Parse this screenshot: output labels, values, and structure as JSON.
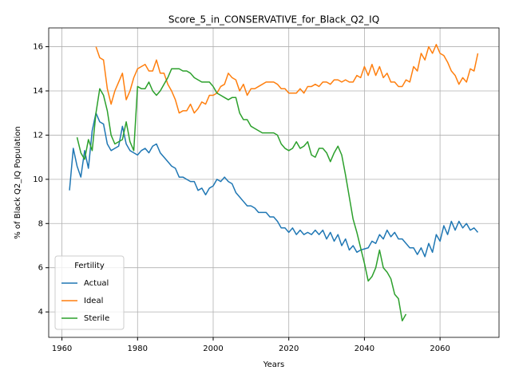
{
  "chart_data": {
    "type": "line",
    "title": "Score_5_in_CONSERVATIVE_for_Black_Q2_IQ",
    "xlabel": "Years",
    "ylabel": "% of Black Q2_IQ Population",
    "legend_title": "Fertility",
    "legend": "lower left",
    "grid": true,
    "xlim": [
      1956.5,
      2075.6
    ],
    "ylim": [
      2.85,
      16.85
    ],
    "xticks": [
      1960,
      1980,
      2000,
      2020,
      2040,
      2060
    ],
    "yticks": [
      4,
      6,
      8,
      10,
      12,
      14,
      16
    ],
    "x": [
      1962,
      1963,
      1964,
      1965,
      1966,
      1967,
      1968,
      1969,
      1970,
      1971,
      1972,
      1973,
      1974,
      1975,
      1976,
      1977,
      1978,
      1979,
      1980,
      1981,
      1982,
      1983,
      1984,
      1985,
      1986,
      1987,
      1988,
      1989,
      1990,
      1991,
      1992,
      1993,
      1994,
      1995,
      1996,
      1997,
      1998,
      1999,
      2000,
      2001,
      2002,
      2003,
      2004,
      2005,
      2006,
      2007,
      2008,
      2009,
      2010,
      2011,
      2012,
      2013,
      2014,
      2015,
      2016,
      2017,
      2018,
      2019,
      2020,
      2021,
      2022,
      2023,
      2024,
      2025,
      2026,
      2027,
      2028,
      2029,
      2030,
      2031,
      2032,
      2033,
      2034,
      2035,
      2036,
      2037,
      2038,
      2039,
      2040,
      2041,
      2042,
      2043,
      2044,
      2045,
      2046,
      2047,
      2048,
      2049,
      2050,
      2051,
      2052,
      2053,
      2054,
      2055,
      2056,
      2057,
      2058,
      2059,
      2060,
      2061,
      2062,
      2063,
      2064,
      2065,
      2066,
      2067,
      2068,
      2069,
      2070
    ],
    "series": [
      {
        "name": "Actual",
        "color": "#1f77b4",
        "values": [
          9.5,
          11.4,
          10.6,
          10.1,
          11.3,
          10.5,
          12.2,
          13.0,
          12.6,
          12.5,
          11.6,
          11.3,
          11.4,
          11.5,
          12.4,
          11.6,
          11.3,
          11.2,
          11.1,
          11.3,
          11.4,
          11.2,
          11.5,
          11.6,
          11.2,
          11.0,
          10.8,
          10.6,
          10.5,
          10.1,
          10.1,
          10.0,
          9.9,
          9.9,
          9.5,
          9.6,
          9.3,
          9.6,
          9.7,
          10.0,
          9.9,
          10.1,
          9.9,
          9.8,
          9.4,
          9.2,
          9.0,
          8.8,
          8.8,
          8.7,
          8.5,
          8.5,
          8.5,
          8.3,
          8.3,
          8.1,
          7.8,
          7.8,
          7.6,
          7.8,
          7.5,
          7.7,
          7.5,
          7.6,
          7.5,
          7.7,
          7.5,
          7.7,
          7.3,
          7.6,
          7.2,
          7.5,
          7.0,
          7.3,
          6.8,
          7.0,
          6.7,
          6.8,
          6.85,
          6.9,
          7.2,
          7.1,
          7.5,
          7.3,
          7.7,
          7.4,
          7.6,
          7.3,
          7.3,
          7.1,
          6.9,
          6.9,
          6.6,
          6.9,
          6.5,
          7.1,
          6.7,
          7.5,
          7.2,
          7.9,
          7.5,
          8.1,
          7.7,
          8.1,
          7.8,
          8.0,
          7.7,
          7.8,
          7.6
        ]
      },
      {
        "name": "Ideal",
        "color": "#ff7f0e",
        "values": [
          null,
          null,
          null,
          null,
          null,
          null,
          null,
          16.0,
          15.5,
          15.4,
          14.1,
          13.4,
          14.0,
          14.4,
          14.8,
          13.6,
          14.0,
          14.6,
          15.0,
          15.1,
          15.2,
          14.9,
          14.9,
          15.4,
          14.8,
          14.8,
          14.3,
          14.0,
          13.6,
          13.0,
          13.1,
          13.1,
          13.4,
          13.0,
          13.2,
          13.5,
          13.4,
          13.8,
          13.8,
          13.9,
          14.2,
          14.3,
          14.8,
          14.6,
          14.5,
          14.0,
          14.3,
          13.8,
          14.1,
          14.1,
          14.2,
          14.3,
          14.4,
          14.4,
          14.4,
          14.3,
          14.1,
          14.1,
          13.9,
          13.9,
          13.9,
          14.1,
          13.9,
          14.2,
          14.2,
          14.3,
          14.2,
          14.4,
          14.4,
          14.3,
          14.5,
          14.5,
          14.4,
          14.5,
          14.4,
          14.4,
          14.7,
          14.6,
          15.1,
          14.7,
          15.2,
          14.7,
          15.1,
          14.6,
          14.8,
          14.4,
          14.4,
          14.2,
          14.2,
          14.5,
          14.4,
          15.1,
          14.9,
          15.7,
          15.4,
          16.0,
          15.7,
          16.1,
          15.7,
          15.6,
          15.3,
          14.9,
          14.7,
          14.3,
          14.6,
          14.4,
          15.0,
          14.9,
          15.7
        ]
      },
      {
        "name": "Sterile",
        "color": "#2ca02c",
        "values": [
          null,
          null,
          11.9,
          11.2,
          10.9,
          11.8,
          11.3,
          13.0,
          14.1,
          13.8,
          13.1,
          12.0,
          11.6,
          11.7,
          11.8,
          12.6,
          11.7,
          11.3,
          14.2,
          14.1,
          14.1,
          14.4,
          14.0,
          13.8,
          14.0,
          14.3,
          14.6,
          15.0,
          15.0,
          15.0,
          14.9,
          14.9,
          14.8,
          14.6,
          14.5,
          14.4,
          14.4,
          14.4,
          14.2,
          13.9,
          13.8,
          13.7,
          13.6,
          13.7,
          13.7,
          13.0,
          12.7,
          12.7,
          12.4,
          12.3,
          12.2,
          12.1,
          12.1,
          12.1,
          12.1,
          12.0,
          11.6,
          11.4,
          11.3,
          11.4,
          11.7,
          11.4,
          11.5,
          11.7,
          11.1,
          11.0,
          11.4,
          11.4,
          11.2,
          10.8,
          11.2,
          11.5,
          11.1,
          10.2,
          9.2,
          8.2,
          7.6,
          6.9,
          6.2,
          5.4,
          5.6,
          6.0,
          6.8,
          6.0,
          5.8,
          5.5,
          4.8,
          4.6,
          3.6,
          3.9,
          null,
          null,
          null,
          null,
          null,
          null,
          null,
          null,
          null,
          null,
          null,
          null,
          null,
          null,
          null,
          null,
          null,
          null,
          null
        ]
      }
    ]
  }
}
